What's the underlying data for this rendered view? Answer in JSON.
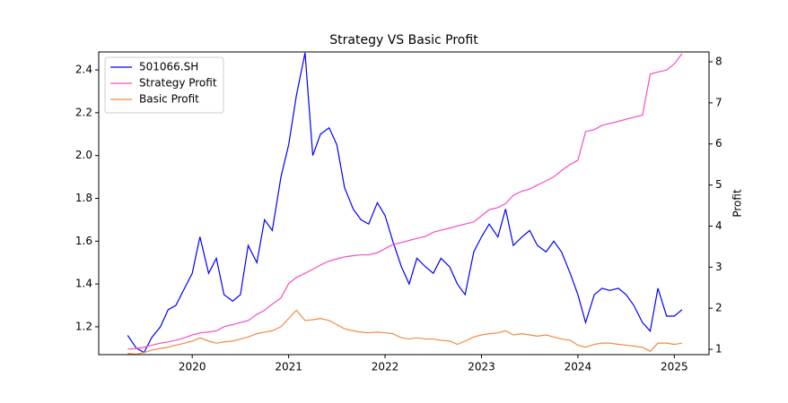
{
  "chart_data": {
    "type": "line",
    "title": "Strategy VS Basic Profit",
    "y2label": "Profit",
    "x": [
      2019.33,
      2019.42,
      2019.5,
      2019.58,
      2019.67,
      2019.75,
      2019.83,
      2019.92,
      2020.0,
      2020.08,
      2020.17,
      2020.25,
      2020.33,
      2020.42,
      2020.5,
      2020.58,
      2020.67,
      2020.75,
      2020.83,
      2020.92,
      2021.0,
      2021.08,
      2021.17,
      2021.25,
      2021.33,
      2021.42,
      2021.5,
      2021.58,
      2021.67,
      2021.75,
      2021.83,
      2021.92,
      2022.0,
      2022.08,
      2022.17,
      2022.25,
      2022.33,
      2022.42,
      2022.5,
      2022.58,
      2022.67,
      2022.75,
      2022.83,
      2022.92,
      2023.0,
      2023.08,
      2023.17,
      2023.25,
      2023.33,
      2023.42,
      2023.5,
      2023.58,
      2023.67,
      2023.75,
      2023.83,
      2023.92,
      2024.0,
      2024.08,
      2024.17,
      2024.25,
      2024.33,
      2024.42,
      2024.5,
      2024.58,
      2024.67,
      2024.75,
      2024.83,
      2024.92,
      2025.0,
      2025.08
    ],
    "series": [
      {
        "name": "501066.SH",
        "color": "#0000ff",
        "axis": "y",
        "values": [
          1.16,
          1.1,
          1.08,
          1.15,
          1.2,
          1.28,
          1.3,
          1.38,
          1.45,
          1.62,
          1.45,
          1.52,
          1.35,
          1.32,
          1.35,
          1.58,
          1.5,
          1.7,
          1.65,
          1.9,
          2.05,
          2.28,
          2.48,
          2.0,
          2.1,
          2.13,
          2.05,
          1.85,
          1.75,
          1.7,
          1.68,
          1.78,
          1.72,
          1.6,
          1.48,
          1.4,
          1.52,
          1.48,
          1.45,
          1.52,
          1.48,
          1.4,
          1.35,
          1.55,
          1.62,
          1.68,
          1.62,
          1.75,
          1.58,
          1.62,
          1.65,
          1.58,
          1.55,
          1.6,
          1.55,
          1.45,
          1.35,
          1.22,
          1.35,
          1.38,
          1.37,
          1.38,
          1.35,
          1.3,
          1.22,
          1.18,
          1.38,
          1.25,
          1.25,
          1.28
        ]
      },
      {
        "name": "Strategy Profit",
        "color": "#f050c0",
        "axis": "y2",
        "values": [
          1.0,
          1.02,
          1.05,
          1.1,
          1.15,
          1.18,
          1.22,
          1.28,
          1.35,
          1.4,
          1.42,
          1.45,
          1.55,
          1.6,
          1.65,
          1.7,
          1.85,
          1.95,
          2.1,
          2.25,
          2.6,
          2.75,
          2.85,
          2.95,
          3.05,
          3.15,
          3.2,
          3.25,
          3.28,
          3.3,
          3.3,
          3.35,
          3.45,
          3.55,
          3.6,
          3.65,
          3.7,
          3.75,
          3.85,
          3.9,
          3.95,
          4.0,
          4.05,
          4.1,
          4.25,
          4.4,
          4.45,
          4.55,
          4.75,
          4.85,
          4.9,
          5.0,
          5.1,
          5.2,
          5.35,
          5.5,
          5.6,
          6.3,
          6.35,
          6.45,
          6.5,
          6.55,
          6.6,
          6.65,
          6.7,
          7.7,
          7.75,
          7.8,
          7.95,
          8.2
        ]
      },
      {
        "name": "Basic Profit",
        "color": "#f08a40",
        "axis": "y2",
        "values": [
          0.9,
          0.88,
          0.92,
          0.98,
          1.02,
          1.05,
          1.1,
          1.15,
          1.2,
          1.28,
          1.2,
          1.15,
          1.18,
          1.2,
          1.25,
          1.3,
          1.38,
          1.42,
          1.45,
          1.55,
          1.75,
          1.95,
          1.7,
          1.72,
          1.75,
          1.7,
          1.6,
          1.5,
          1.45,
          1.42,
          1.4,
          1.42,
          1.4,
          1.38,
          1.28,
          1.25,
          1.28,
          1.25,
          1.25,
          1.22,
          1.2,
          1.12,
          1.2,
          1.3,
          1.35,
          1.38,
          1.4,
          1.45,
          1.35,
          1.38,
          1.35,
          1.32,
          1.35,
          1.3,
          1.25,
          1.22,
          1.1,
          1.05,
          1.12,
          1.15,
          1.15,
          1.12,
          1.1,
          1.08,
          1.05,
          0.95,
          1.15,
          1.15,
          1.12,
          1.15
        ]
      }
    ],
    "xlim": [
      2019.03,
      2025.36
    ],
    "xticks": [
      2020,
      2021,
      2022,
      2023,
      2024,
      2025
    ],
    "ylim": [
      1.07,
      2.484
    ],
    "yticks": [
      1.2,
      1.4,
      1.6,
      1.8,
      {
        "value": 2,
        "label": "2.0"
      },
      2.2,
      2.4
    ],
    "y2lim": [
      0.87,
      8.24
    ],
    "y2ticks": [
      1,
      2,
      3,
      4,
      5,
      6,
      7,
      8
    ],
    "legend": "upper left"
  }
}
